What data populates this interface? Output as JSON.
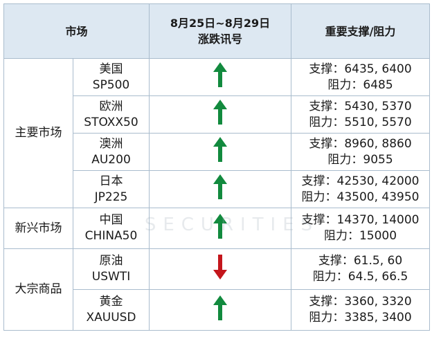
{
  "header": {
    "market": "市场",
    "signal_date": "8月25日~8月29日",
    "signal": "涨跌讯号",
    "levels": "重要支撑/阻力"
  },
  "groups": [
    {
      "name": "主要市场",
      "rows": [
        {
          "name": "美国",
          "code": "SP500",
          "signal": "up",
          "support": "支撑：6435, 6400",
          "resistance": "阻力：6485"
        },
        {
          "name": "欧洲",
          "code": "STOXX50",
          "signal": "up",
          "support": "支撑：5430, 5370",
          "resistance": "阻力：5510, 5570"
        },
        {
          "name": "澳洲",
          "code": "AU200",
          "signal": "up",
          "support": "支撑：8960, 8860",
          "resistance": "阻力：9055"
        },
        {
          "name": "日本",
          "code": "JP225",
          "signal": "up",
          "support": "支撑：42530, 42000",
          "resistance": "阻力：43500, 43950"
        }
      ]
    },
    {
      "name": "新兴市场",
      "rows": [
        {
          "name": "中国",
          "code": "CHINA50",
          "signal": "up",
          "support": "支撑：14370, 14000",
          "resistance": "阻力：15000"
        }
      ]
    },
    {
      "name": "大宗商品",
      "rows": [
        {
          "name": "原油",
          "code": "USWTI",
          "signal": "down",
          "support": "支撑：61.5, 60",
          "resistance": "阻力：64.5, 66.5"
        },
        {
          "name": "黄金",
          "code": "XAUUSD",
          "signal": "up",
          "support": "支撑：3360, 3320",
          "resistance": "阻力：3385, 3400"
        }
      ]
    }
  ],
  "watermark": "SECURITIES"
}
